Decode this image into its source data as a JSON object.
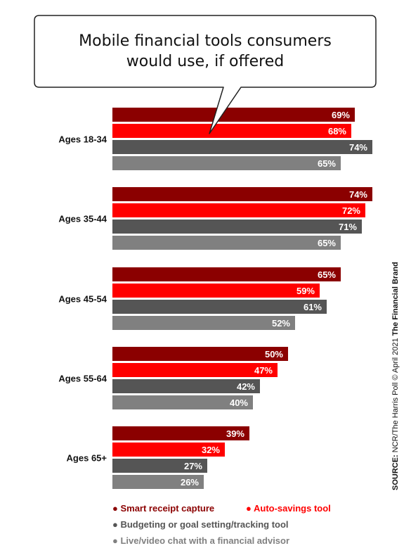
{
  "chart_data": {
    "type": "bar",
    "orientation": "horizontal",
    "title": "Mobile financial tools consumers would use, if offered",
    "title_lines": [
      "Mobile financial tools consumers",
      "would use, if offered"
    ],
    "categories": [
      "Ages 18-34",
      "Ages 35-44",
      "Ages 45-54",
      "Ages 55-64",
      "Ages 65+"
    ],
    "series": [
      {
        "name": "Smart receipt capture",
        "color": "#8b0000",
        "values": [
          69,
          74,
          65,
          50,
          39
        ]
      },
      {
        "name": "Auto-savings tool",
        "color": "#ff0000",
        "values": [
          68,
          72,
          59,
          47,
          32
        ]
      },
      {
        "name": "Budgeting or goal setting/tracking tool",
        "color": "#555555",
        "values": [
          74,
          71,
          61,
          42,
          27
        ]
      },
      {
        "name": "Live/video chat with a financial advisor",
        "color": "#808080",
        "values": [
          65,
          65,
          52,
          40,
          26
        ]
      }
    ],
    "value_suffix": "%",
    "xlim": [
      0,
      80
    ],
    "grid": false,
    "legend": "bottom",
    "source": {
      "label": "SOURCE:",
      "text": " NCR/The Harris Poll © April 2021 ",
      "brand": "The Financial Brand"
    }
  }
}
